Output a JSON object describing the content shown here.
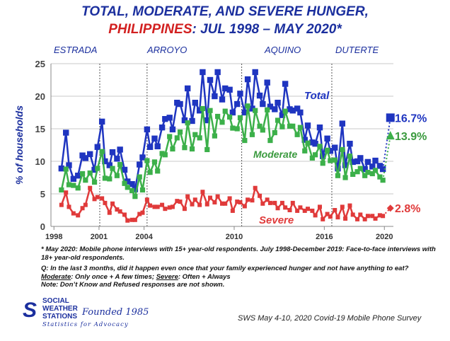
{
  "title": {
    "line1": "TOTAL, MODERATE, AND SEVERE HUNGER,",
    "line2_country": "PHILIPPINES",
    "line2_rest": ": JUL 1998 – MAY 2020*"
  },
  "presidents": [
    "ESTRADA",
    "ARROYO",
    "AQUINO",
    "DUTERTE"
  ],
  "chart_data": {
    "type": "line",
    "ylabel": "% of households",
    "ylim": [
      0,
      25
    ],
    "yticks": [
      0,
      5,
      10,
      15,
      20,
      25
    ],
    "xlim": [
      1997.8,
      2020.6
    ],
    "xticks": [
      1998,
      2001,
      2004,
      2010,
      2016,
      2020
    ],
    "grid": "horizontal",
    "period_dividers": [
      2001.05,
      2004.2,
      2010.5,
      2016.5
    ],
    "series": [
      {
        "name": "Total",
        "color": "#1f35c0",
        "x": [
          1998.5,
          1998.8,
          1999.0,
          1999.3,
          1999.6,
          1999.9,
          2000.1,
          2000.4,
          2000.7,
          2000.9,
          2001.2,
          2001.4,
          2001.7,
          2001.9,
          2002.2,
          2002.4,
          2002.7,
          2002.9,
          2003.2,
          2003.4,
          2003.7,
          2003.9,
          2004.2,
          2004.4,
          2004.7,
          2004.9,
          2005.2,
          2005.4,
          2005.7,
          2005.9,
          2006.2,
          2006.4,
          2006.7,
          2006.9,
          2007.2,
          2007.4,
          2007.7,
          2007.9,
          2008.2,
          2008.4,
          2008.7,
          2008.9,
          2009.2,
          2009.4,
          2009.7,
          2009.9,
          2010.2,
          2010.4,
          2010.7,
          2010.9,
          2011.2,
          2011.4,
          2011.7,
          2011.9,
          2012.2,
          2012.4,
          2012.7,
          2012.9,
          2013.2,
          2013.4,
          2013.7,
          2013.9,
          2014.2,
          2014.4,
          2014.7,
          2014.9,
          2015.2,
          2015.4,
          2015.7,
          2015.9,
          2016.2,
          2016.4,
          2016.7,
          2016.9,
          2017.2,
          2017.4,
          2017.7,
          2017.9,
          2018.2,
          2018.4,
          2018.7,
          2018.9,
          2019.2,
          2019.4,
          2019.7,
          2019.9
        ],
        "values": [
          8.9,
          14.4,
          9.4,
          7.3,
          7.8,
          10.9,
          10.5,
          11.1,
          8.7,
          12.2,
          16.1,
          10.0,
          9.4,
          11.4,
          10.4,
          11.8,
          8.7,
          6.9,
          6.5,
          5.7,
          9.5,
          10.6,
          14.9,
          12.2,
          13.5,
          12.3,
          15.2,
          16.5,
          16.7,
          14.9,
          19.0,
          18.8,
          16.3,
          21.2,
          16.2,
          19.0,
          17.8,
          23.7,
          16.3,
          22.5,
          20.0,
          23.7,
          19.5,
          21.2,
          21.0,
          17.5,
          18.8,
          20.4,
          17.5,
          22.6,
          18.1,
          23.7,
          20.1,
          18.8,
          22.1,
          18.4,
          18.0,
          19.0,
          17.1,
          21.9,
          18.0,
          17.8,
          18.1,
          17.5,
          13.3,
          15.5,
          12.9,
          12.7,
          15.2,
          10.8,
          13.5,
          11.6,
          12.1,
          8.9,
          15.8,
          9.4,
          12.7,
          9.9,
          10.0,
          10.5,
          8.8,
          9.9,
          9.2,
          10.1,
          9.3,
          8.8
        ]
      },
      {
        "name": "Moderate",
        "color": "#3cb04a",
        "x": [
          1998.5,
          1998.8,
          1999.0,
          1999.3,
          1999.6,
          1999.9,
          2000.1,
          2000.4,
          2000.7,
          2000.9,
          2001.2,
          2001.4,
          2001.7,
          2001.9,
          2002.2,
          2002.4,
          2002.7,
          2002.9,
          2003.2,
          2003.4,
          2003.7,
          2003.9,
          2004.2,
          2004.4,
          2004.7,
          2004.9,
          2005.2,
          2005.4,
          2005.7,
          2005.9,
          2006.2,
          2006.4,
          2006.7,
          2006.9,
          2007.2,
          2007.4,
          2007.7,
          2007.9,
          2008.2,
          2008.4,
          2008.7,
          2008.9,
          2009.2,
          2009.4,
          2009.7,
          2009.9,
          2010.2,
          2010.4,
          2010.7,
          2010.9,
          2011.2,
          2011.4,
          2011.7,
          2011.9,
          2012.2,
          2012.4,
          2012.7,
          2012.9,
          2013.2,
          2013.4,
          2013.7,
          2013.9,
          2014.2,
          2014.4,
          2014.7,
          2014.9,
          2015.2,
          2015.4,
          2015.7,
          2015.9,
          2016.2,
          2016.4,
          2016.7,
          2016.9,
          2017.2,
          2017.4,
          2017.7,
          2017.9,
          2018.2,
          2018.4,
          2018.7,
          2018.9,
          2019.2,
          2019.4,
          2019.7,
          2019.9
        ],
        "values": [
          5.6,
          8.8,
          6.4,
          6.3,
          5.9,
          8.1,
          7.1,
          8.2,
          6.8,
          8.9,
          11.5,
          7.4,
          7.3,
          8.9,
          7.8,
          9.5,
          6.6,
          6.0,
          5.5,
          4.6,
          7.6,
          5.6,
          10.1,
          8.3,
          9.9,
          8.5,
          11.2,
          11.0,
          13.8,
          11.9,
          13.6,
          14.5,
          12.1,
          15.9,
          11.9,
          14.1,
          13.6,
          18.1,
          11.8,
          17.8,
          13.9,
          16.9,
          16.0,
          17.7,
          16.8,
          15.1,
          15.0,
          16.7,
          13.2,
          18.5,
          14.1,
          17.8,
          15.4,
          14.8,
          17.9,
          13.2,
          14.4,
          16.3,
          15.3,
          17.7,
          15.4,
          15.4,
          14.1,
          15.2,
          11.6,
          12.8,
          10.5,
          11.0,
          12.3,
          9.7,
          11.7,
          10.1,
          10.2,
          7.8,
          11.8,
          7.5,
          10.8,
          8.0,
          8.4,
          8.9,
          7.8,
          8.3,
          8.1,
          8.6,
          7.6,
          7.1
        ]
      },
      {
        "name": "Severe",
        "color": "#e03a3a",
        "x": [
          1998.5,
          1998.8,
          1999.0,
          1999.3,
          1999.6,
          1999.9,
          2000.1,
          2000.4,
          2000.7,
          2000.9,
          2001.2,
          2001.4,
          2001.7,
          2001.9,
          2002.2,
          2002.4,
          2002.7,
          2002.9,
          2003.2,
          2003.4,
          2003.7,
          2003.9,
          2004.2,
          2004.4,
          2004.7,
          2004.9,
          2005.2,
          2005.4,
          2005.7,
          2005.9,
          2006.2,
          2006.4,
          2006.7,
          2006.9,
          2007.2,
          2007.4,
          2007.7,
          2007.9,
          2008.2,
          2008.4,
          2008.7,
          2008.9,
          2009.2,
          2009.4,
          2009.7,
          2009.9,
          2010.2,
          2010.4,
          2010.7,
          2010.9,
          2011.2,
          2011.4,
          2011.7,
          2011.9,
          2012.2,
          2012.4,
          2012.7,
          2012.9,
          2013.2,
          2013.4,
          2013.7,
          2013.9,
          2014.2,
          2014.4,
          2014.7,
          2014.9,
          2015.2,
          2015.4,
          2015.7,
          2015.9,
          2016.2,
          2016.4,
          2016.7,
          2016.9,
          2017.2,
          2017.4,
          2017.7,
          2017.9,
          2018.2,
          2018.4,
          2018.7,
          2018.9,
          2019.2,
          2019.4,
          2019.7,
          2019.9
        ],
        "values": [
          3.3,
          5.2,
          3.0,
          2.0,
          1.7,
          2.8,
          3.3,
          5.9,
          4.2,
          4.5,
          4.3,
          3.6,
          2.1,
          3.5,
          2.6,
          2.3,
          1.8,
          0.9,
          1.0,
          1.0,
          1.9,
          2.1,
          4.1,
          3.2,
          3.0,
          3.0,
          3.3,
          2.7,
          2.9,
          3.0,
          3.9,
          3.8,
          2.7,
          4.6,
          3.4,
          4.1,
          3.3,
          5.3,
          3.4,
          4.4,
          3.7,
          4.6,
          3.5,
          3.5,
          4.3,
          2.4,
          3.8,
          3.7,
          3.1,
          4.1,
          4.0,
          5.9,
          4.7,
          3.5,
          4.1,
          3.6,
          3.6,
          2.8,
          3.6,
          2.9,
          2.5,
          3.6,
          2.4,
          2.9,
          2.4,
          2.7,
          2.4,
          1.7,
          3.0,
          1.1,
          1.9,
          1.5,
          2.5,
          1.4,
          3.0,
          1.2,
          3.2,
          1.8,
          1.1,
          1.8,
          1.1,
          1.6,
          1.6,
          1.2,
          1.7,
          1.6
        ]
      }
    ],
    "may2020": {
      "x": 2020.4,
      "total": 16.7,
      "moderate": 13.9,
      "severe": 2.8,
      "total_label": "16.7%",
      "moderate_label": "13.9%",
      "severe_label": "2.8%"
    }
  },
  "notes": {
    "n1": "* May 2020: Mobile phone interviews with 15+ year-old respondents. July 1998-December 2019: Face-to-face interviews with 18+ year-old respondents.",
    "n2": "Q: In the last 3 months, did it happen even once that your family experienced hunger and not have anything to eat?",
    "n3a": "Moderate",
    "n3b": ": Only once + A few times; ",
    "n3c": "Severe",
    "n3d": ": Often + Always",
    "n4": "Note: Don’t Know and Refused responses are not shown."
  },
  "logo": {
    "l1": "SOCIAL",
    "l2": "WEATHER",
    "l3": "STATIONS",
    "founded": "Founded 1985",
    "tagline": "Statistics for Advocacy"
  },
  "source": "SWS May 4-10, 2020 Covid-19 Mobile Phone Survey"
}
